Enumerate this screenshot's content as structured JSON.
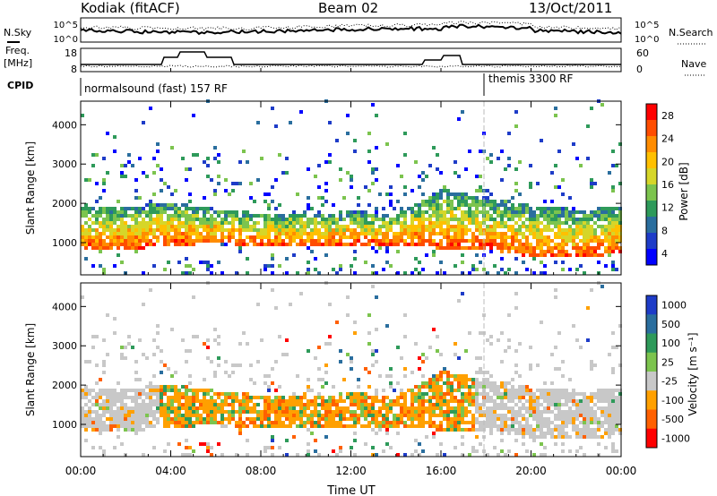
{
  "header": {
    "station": "Kodiak (fitACF)",
    "beam": "Beam 02",
    "date": "13/Oct/2011"
  },
  "noise_panel": {
    "left_label": "N.Sky",
    "right_label": "N.Search",
    "ticks_left": [
      "10^5",
      "10^0"
    ],
    "ticks_right": [
      "10^5",
      "10^0"
    ]
  },
  "freq_panel": {
    "left_label_1": "Freq.",
    "left_label_2": "[MHz]",
    "right_label": "Nave",
    "ticks_left": [
      "18",
      "8"
    ],
    "ticks_right": [
      "60",
      "0"
    ]
  },
  "cpid_panel": {
    "label": "CPID",
    "mode_1": "normalsound (fast) 157 RF",
    "mode_2": "themis 3300 RF"
  },
  "chart_data": [
    {
      "type": "heatmap",
      "title": "",
      "ylabel": "Slant Range [km]",
      "ylim": [
        180,
        4600
      ],
      "yticks": [
        "1000",
        "2000",
        "3000",
        "4000"
      ],
      "xlabel": "Time UT",
      "xticks": [
        "00:00",
        "04:00",
        "08:00",
        "12:00",
        "16:00",
        "20:00",
        "00:00"
      ],
      "colorbar_label": "Power [dB]",
      "colorbar_ticks": [
        "28",
        "24",
        "20",
        "16",
        "12",
        "8",
        "4"
      ],
      "colorbar_colors": [
        "#ff0000",
        "#ff4d00",
        "#ff8c00",
        "#ffc000",
        "#d6d629",
        "#7cc44e",
        "#2e9a5a",
        "#2a6e9e",
        "#1e3cc8",
        "#0000ff"
      ],
      "main_scatter_band_km": [
        700,
        2000
      ],
      "description_series": [
        {
          "name": "scatter band lower edge (km)",
          "x_hours": [
            0,
            2,
            4,
            6,
            8,
            10,
            12,
            14,
            16,
            18,
            20,
            22,
            24
          ],
          "values": [
            750,
            800,
            850,
            950,
            850,
            850,
            900,
            900,
            800,
            750,
            600,
            550,
            700
          ]
        },
        {
          "name": "scatter band upper edge (km)",
          "x_hours": [
            0,
            2,
            4,
            6,
            8,
            10,
            12,
            14,
            16,
            18,
            20,
            22,
            24
          ],
          "values": [
            1900,
            1850,
            2000,
            1800,
            1700,
            1700,
            1750,
            1700,
            2300,
            2100,
            1900,
            1800,
            1850
          ]
        }
      ]
    },
    {
      "type": "heatmap",
      "title": "",
      "ylabel": "Slant Range [km]",
      "ylim": [
        180,
        4600
      ],
      "yticks": [
        "1000",
        "2000",
        "3000",
        "4000"
      ],
      "xlabel": "Time UT",
      "xticks": [
        "00:00",
        "04:00",
        "08:00",
        "12:00",
        "16:00",
        "20:00",
        "00:00"
      ],
      "colorbar_label": "Velocity [m s⁻¹]",
      "colorbar_ticks": [
        "1000",
        "500",
        "100",
        "25",
        "-25",
        "-100",
        "-500",
        "-1000"
      ],
      "colorbar_colors": [
        "#1e3cc8",
        "#2a6e9e",
        "#2e9a5a",
        "#7cc44e",
        "#c8c8c8",
        "#ffa000",
        "#ff6000",
        "#ff0000"
      ],
      "ground_scatter_color": "#c8c8c8"
    }
  ]
}
